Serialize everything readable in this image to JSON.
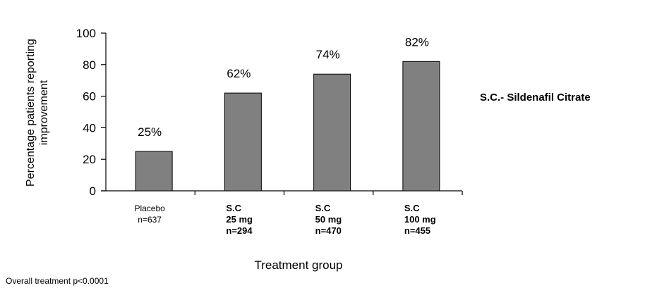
{
  "chart_data": {
    "type": "bar",
    "categories": [
      {
        "lines": [
          "Placebo",
          "n=637"
        ],
        "bold": false
      },
      {
        "lines": [
          "S.C",
          "25 mg",
          "n=294"
        ],
        "bold": true
      },
      {
        "lines": [
          "S.C",
          "50 mg",
          "n=470"
        ],
        "bold": true
      },
      {
        "lines": [
          "S.C",
          "100 mg",
          "n=455"
        ],
        "bold": true
      }
    ],
    "values": [
      25,
      62,
      74,
      82
    ],
    "data_labels": [
      "25%",
      "62%",
      "74%",
      "82%"
    ],
    "ylabel_lines": [
      "Percentage patients reporting",
      "improvement"
    ],
    "xlabel": "Treatment group",
    "ylim": [
      0,
      100
    ],
    "yticks": [
      0,
      20,
      40,
      60,
      80,
      100
    ],
    "bar_color": "#808080",
    "grid": false
  },
  "footnote": "Overall treatment p<0.0001",
  "side_note": "S.C.- Sildenafil Citrate"
}
